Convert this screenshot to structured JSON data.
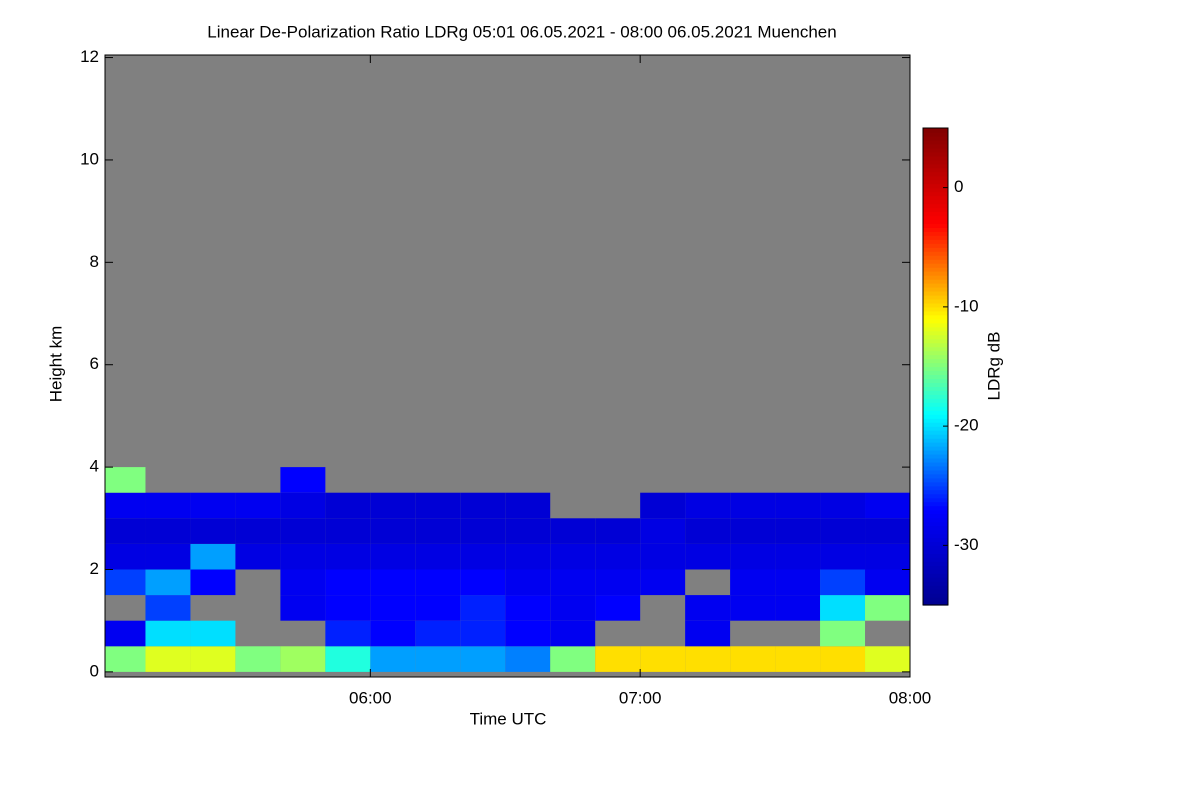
{
  "chart_data": {
    "type": "heatmap",
    "title": "Linear De-Polarization Ratio LDRg   05:01 06.05.2021 - 08:00 06.05.2021 Muenchen",
    "xlabel": "Time UTC",
    "ylabel": "Height km",
    "colorbar_label": "LDRg dB",
    "xlim": [
      301,
      480
    ],
    "xticks": [
      {
        "value": 360,
        "label": "06:00"
      },
      {
        "value": 420,
        "label": "07:00"
      },
      {
        "value": 480,
        "label": "08:00"
      }
    ],
    "ylim": [
      -0.1,
      12.05
    ],
    "yticks": [
      0,
      2,
      4,
      6,
      8,
      10,
      12
    ],
    "colorlim": [
      -35,
      5
    ],
    "colorbar_ticks": [
      0,
      -10,
      -20,
      -30
    ],
    "colormap": [
      "#00008f",
      "#0000ff",
      "#00ffff",
      "#ffff00",
      "#ff0000",
      "#800000"
    ],
    "background": "#808080",
    "x_edges": [
      301,
      310,
      320,
      330,
      340,
      350,
      360,
      370,
      380,
      390,
      400,
      410,
      420,
      430,
      440,
      450,
      460,
      470,
      480
    ],
    "y_edges": [
      0,
      0.5,
      1,
      1.5,
      2,
      2.5,
      3,
      3.5,
      4
    ],
    "values": [
      [
        -15,
        -12,
        -12,
        -15,
        -14,
        -18,
        -22,
        -22,
        -22,
        -23,
        -15,
        -10,
        -10,
        -10,
        -10,
        -10,
        -10,
        -12
      ],
      [
        -28,
        -20,
        -20,
        null,
        null,
        -26,
        -27,
        -26,
        -26,
        -27,
        -28,
        null,
        null,
        -28,
        null,
        null,
        -15,
        null
      ],
      [
        null,
        -25,
        null,
        null,
        -28,
        -27,
        -27,
        -27,
        -26,
        -27,
        -28,
        -27,
        null,
        -28,
        -28,
        -28,
        -20,
        -15
      ],
      [
        -25,
        -22,
        -27,
        null,
        -28,
        -27,
        -27,
        -27,
        -27,
        -28,
        -28,
        -28,
        -28,
        null,
        -28,
        -28,
        -25,
        -28
      ],
      [
        -29,
        -29,
        -22,
        -29,
        -29,
        -29,
        -29,
        -29,
        -29,
        -29,
        -29,
        -29,
        -29,
        -29,
        -29,
        -29,
        -29,
        -29
      ],
      [
        -30,
        -30,
        -30,
        -30,
        -30,
        -30,
        -30,
        -30,
        -30,
        -30,
        -30,
        -30,
        -29,
        -30,
        -30,
        -30,
        -30,
        -30
      ],
      [
        -28,
        -28,
        -28,
        -28,
        -29,
        -30,
        -30,
        -30,
        -30,
        -30,
        null,
        null,
        -30,
        -29,
        -29,
        -29,
        -29,
        -28
      ],
      [
        -15,
        null,
        null,
        null,
        -27,
        null,
        null,
        null,
        null,
        null,
        null,
        null,
        null,
        null,
        null,
        null,
        null,
        null
      ]
    ]
  }
}
